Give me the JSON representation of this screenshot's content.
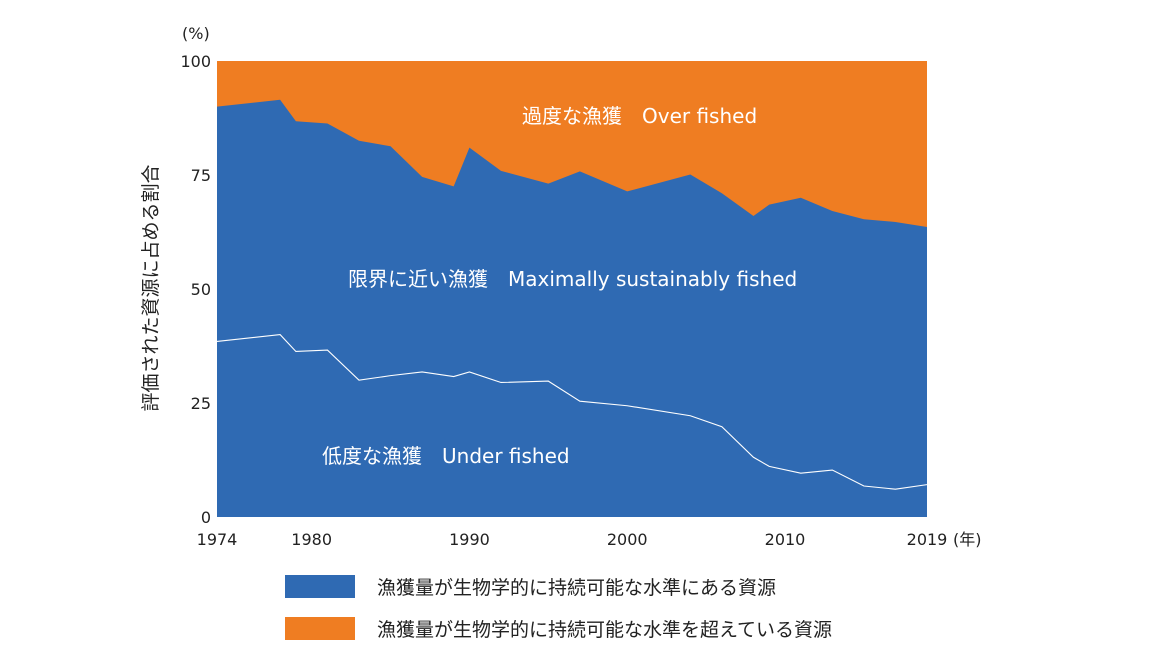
{
  "chart_data": {
    "type": "area",
    "stacked": true,
    "y_unit": "(%)",
    "x_unit": "(年)",
    "ylabel": "評価された資源に占める割合",
    "xlim": [
      1974,
      2019
    ],
    "ylim": [
      0,
      100
    ],
    "x_ticks": [
      1974,
      1980,
      1990,
      2000,
      2010,
      2019
    ],
    "y_ticks": [
      0,
      25,
      50,
      75,
      100
    ],
    "grid": false,
    "x": [
      1974,
      1978,
      1979,
      1981,
      1983,
      1985,
      1987,
      1989,
      1990,
      1992,
      1995,
      1997,
      2000,
      2004,
      2006,
      2008,
      2009,
      2011,
      2013,
      2015,
      2017,
      2019
    ],
    "under_fished": [
      38.5,
      40,
      36.3,
      36.6,
      30,
      31,
      31.8,
      30.8,
      31.8,
      29.5,
      29.8,
      25.4,
      24.4,
      22.2,
      19.8,
      13.1,
      11.1,
      9.6,
      10.3,
      6.8,
      6.1,
      7.1
    ],
    "sustainable_total": [
      90,
      91.5,
      86.8,
      86.3,
      82.5,
      81.3,
      74.6,
      72.5,
      81,
      75.9,
      73.1,
      75.8,
      71.4,
      75.1,
      71,
      66,
      68.5,
      70,
      67.1,
      65.3,
      64.7,
      63.6
    ],
    "region_labels": {
      "over": "過度な漁獲　Over fished",
      "maximally": "限界に近い漁獲　Maximally sustainably fished",
      "under": "低度な漁獲　Under fished"
    },
    "series": [
      {
        "name": "漁獲量が生物学的に持続可能な水準にある資源",
        "color": "#2f6ab3"
      },
      {
        "name": "漁獲量が生物学的に持続可能な水準を超えている資源",
        "color": "#ef7d22"
      }
    ]
  }
}
